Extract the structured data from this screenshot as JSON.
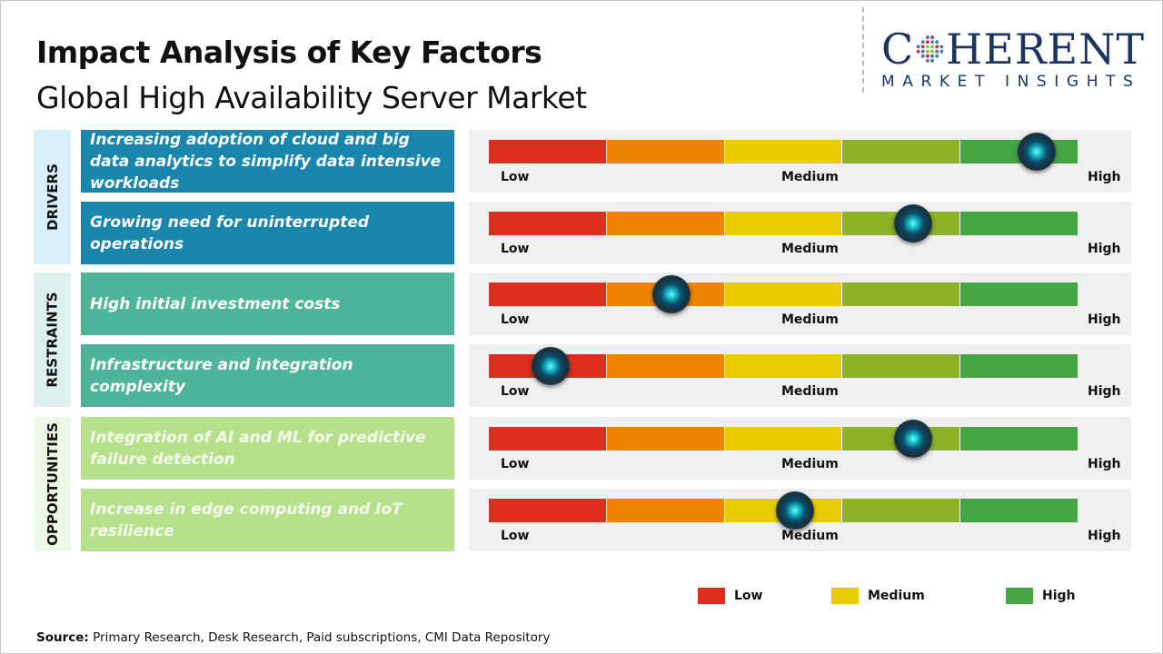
{
  "header": {
    "title": "Impact Analysis of Key Factors",
    "subtitle": "Global High Availability Server Market"
  },
  "logo": {
    "line1_left": "C",
    "line1_right": "HERENT",
    "line2": "MARKET INSIGHTS"
  },
  "scale": {
    "low": "Low",
    "medium": "Medium",
    "high": "High",
    "colors": [
      "#dd2e1c",
      "#ee8400",
      "#e8cc00",
      "#8fb128",
      "#44a544"
    ]
  },
  "groups": [
    {
      "label": "DRIVERS",
      "color": "#1a86ab",
      "bg": "#d8eef8",
      "text_color": "#ffffff",
      "factors": [
        {
          "text": "Increasing adoption of cloud and big data analytics to simplify data intensive workloads",
          "impact": 0.93
        },
        {
          "text": "Growing need for uninterrupted operations",
          "impact": 0.72
        }
      ]
    },
    {
      "label": "RESTRAINTS",
      "color": "#4fb59a",
      "bg": "#ddf0ee",
      "text_color": "#ffffff",
      "factors": [
        {
          "text": "High initial investment costs",
          "impact": 0.31
        },
        {
          "text": "Infrastructure and integration complexity",
          "impact": 0.105
        }
      ]
    },
    {
      "label": "OPPORTUNITIES",
      "color": "#b6e08a",
      "bg": "#eef8e6",
      "text_color": "#f4fbef",
      "factors": [
        {
          "text": "Integration of AI and ML for predictive failure detection",
          "impact": 0.72
        },
        {
          "text": "Increase in edge computing and IoT resilience",
          "impact": 0.52
        }
      ]
    }
  ],
  "legend": [
    {
      "label": "Low",
      "color": "#dd2e1c"
    },
    {
      "label": "Medium",
      "color": "#e8cc00"
    },
    {
      "label": "High",
      "color": "#44a544"
    }
  ],
  "source": {
    "label": "Source:",
    "text": " Primary Research, Desk Research, Paid subscriptions, CMI Data Repository"
  }
}
